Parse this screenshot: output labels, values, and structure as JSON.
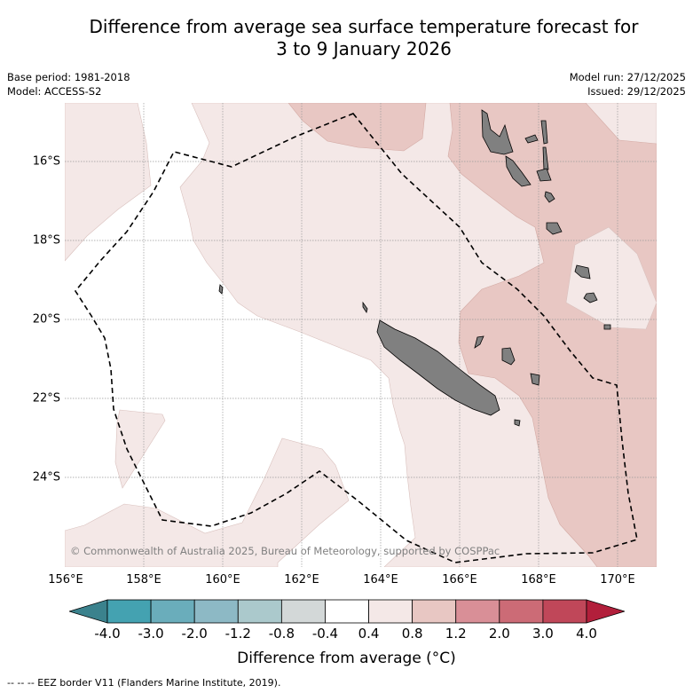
{
  "title_line1": "Difference from average sea surface temperature forecast for",
  "title_line2": "3 to 9 January 2026",
  "base_period": "Base period: 1981-2018",
  "model": "Model: ACCESS-S2",
  "model_run": "Model run: 27/12/2025",
  "issued": "Issued: 29/12/2025",
  "map": {
    "extent": {
      "lon_min": 156.5,
      "lon_max": 171.0,
      "lat_min": -26.0,
      "lat_max": -14.5
    },
    "lat_labels": [
      "16°S",
      "18°S",
      "20°S",
      "22°S",
      "24°S"
    ],
    "lon_labels": [
      "156°E",
      "158°E",
      "160°E",
      "162°E",
      "164°E",
      "166°E",
      "168°E",
      "170°E"
    ],
    "copyright": "© Commonwealth of Australia 2025, Bureau of Meteorology, supported by COSPPac",
    "colors": {
      "ocean": "#ffffff",
      "band_04_08": "#f4e8e7",
      "band_08_12": "#e8c7c3",
      "land": "#808080",
      "grid": "#999999"
    }
  },
  "colorbar": {
    "ticks": [
      "-4.0",
      "-3.0",
      "-2.0",
      "-1.2",
      "-0.8",
      "-0.4",
      "0.4",
      "0.8",
      "1.2",
      "2.0",
      "3.0",
      "4.0"
    ],
    "colors": [
      "#44a2b1",
      "#6aadbb",
      "#8db9c5",
      "#abc9cc",
      "#d3d8d8",
      "#ffffff",
      "#f4e8e7",
      "#e8c7c3",
      "#d98f97",
      "#cc6b76",
      "#c04759"
    ],
    "under_color": "#3b828d",
    "over_color": "#b21f3b",
    "label": "Difference from average (°C)"
  },
  "eez_note": "-- -- -- EEZ border V11 (Flanders Marine Institute, 2019)."
}
